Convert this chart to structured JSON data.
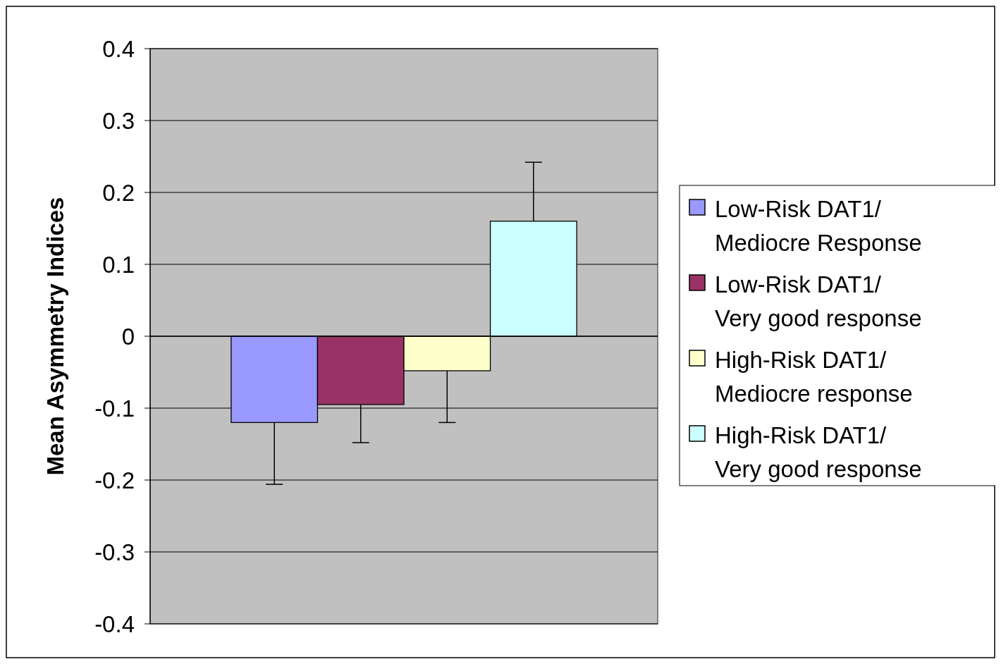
{
  "chart_data": {
    "type": "bar",
    "ylabel": "Mean Asymmetry Indices",
    "categories": [
      null
    ],
    "series": [
      {
        "name": "Low-Risk DAT1/ Mediocre Response",
        "color": "#9999ff",
        "values": [
          -0.12
        ],
        "errors": [
          [
            -0.206,
            -0.12
          ]
        ]
      },
      {
        "name": "Low-Risk DAT1/  Very good response",
        "color": "#993366",
        "values": [
          -0.095
        ],
        "errors": [
          [
            -0.148,
            -0.095
          ]
        ]
      },
      {
        "name": "High-Risk DAT1/ Mediocre response",
        "color": "#ffffcc",
        "values": [
          -0.048
        ],
        "errors": [
          [
            -0.12,
            -0.048
          ]
        ]
      },
      {
        "name": "High-Risk DAT1/  Very good response",
        "color": "#ccffff",
        "values": [
          0.16
        ],
        "errors": [
          [
            0.16,
            0.242
          ]
        ]
      }
    ],
    "ylim": [
      -0.4,
      0.4
    ],
    "yticks": [
      -0.4,
      -0.3,
      -0.2,
      -0.1,
      0,
      0.1,
      0.2,
      0.3,
      0.4
    ],
    "grid": "y",
    "legend": "right"
  }
}
